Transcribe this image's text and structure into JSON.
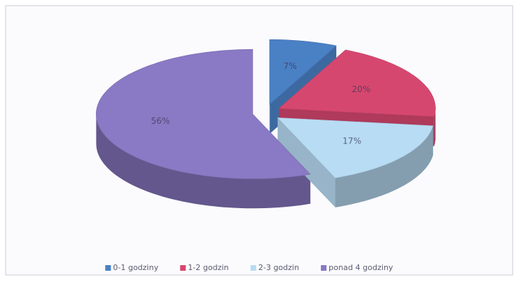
{
  "chart_data": {
    "type": "pie",
    "categories": [
      "0-1 godziny",
      "1-2 godzin",
      "2-3 godzin",
      "ponad 4 godziny"
    ],
    "values": [
      7,
      20,
      17,
      56
    ],
    "value_labels": [
      "7%",
      "20%",
      "17%",
      "56%"
    ],
    "colors": [
      "#4a80c4",
      "#d6476f",
      "#b8dcf4",
      "#8a79c4"
    ],
    "legend": "bottom"
  }
}
